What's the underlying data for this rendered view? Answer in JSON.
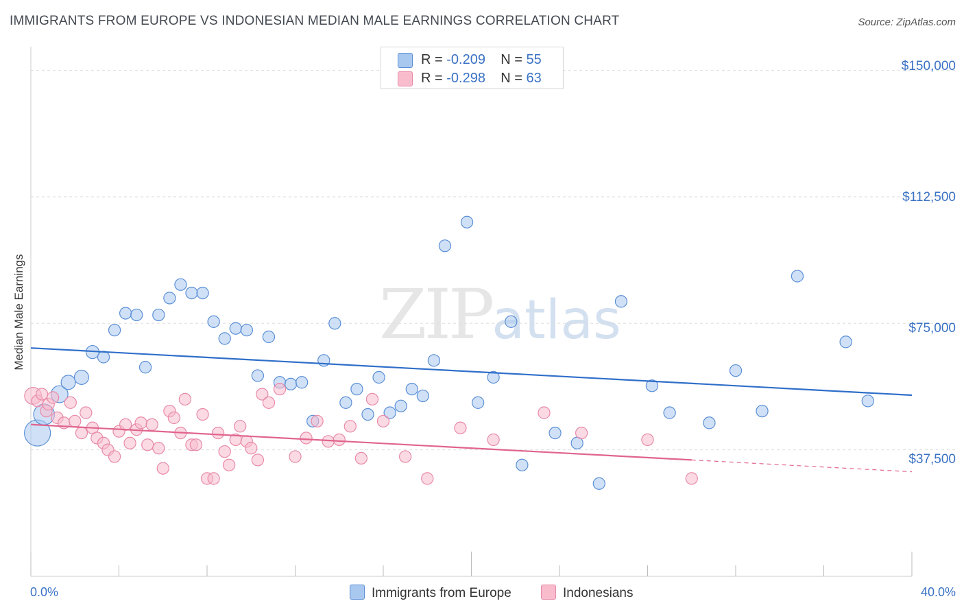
{
  "title": "IMMIGRANTS FROM EUROPE VS INDONESIAN MEDIAN MALE EARNINGS CORRELATION CHART",
  "source": "Source: ZipAtlas.com",
  "watermark": {
    "zip": "ZIP",
    "atlas": "atlas"
  },
  "legend_top": {
    "rows": [
      {
        "r_label": "R = ",
        "r_value": "-0.209",
        "n_label": "N = ",
        "n_value": "55",
        "color": "#a9c8f0"
      },
      {
        "r_label": "R = ",
        "r_value": "-0.298",
        "n_label": "N = ",
        "n_value": "63",
        "color": "#f8bccd"
      }
    ]
  },
  "colors": {
    "blue_fill": "#a9c8f0",
    "blue_stroke": "#5b8fd6",
    "blue_line": "#2f6fc9",
    "pink_fill": "#f8bccd",
    "pink_stroke": "#e88aa8",
    "pink_line": "#e0648e",
    "axis_text": "#3a72c4",
    "grid": "#dddddd"
  },
  "chart_data": {
    "type": "scatter",
    "title": "IMMIGRANTS FROM EUROPE VS INDONESIAN MEDIAN MALE EARNINGS CORRELATION CHART",
    "xlabel": "",
    "ylabel": "Median Male Earnings",
    "xlim": [
      0,
      40
    ],
    "ylim": [
      0,
      155000
    ],
    "x_tick_labels": [
      "0.0%",
      "40.0%"
    ],
    "y_ticks": [
      37500,
      75000,
      112500,
      150000
    ],
    "y_tick_labels": [
      "$37,500",
      "$75,000",
      "$112,500",
      "$150,000"
    ],
    "legend": [
      "Immigrants from Europe",
      "Indonesians"
    ],
    "series": [
      {
        "name": "Immigrants from Europe",
        "r": -0.209,
        "n": 55,
        "trend": {
          "x0": 0,
          "y0": 67700,
          "x1": 40,
          "y1": 53700
        },
        "points": [
          [
            0.3,
            42500,
            2.0
          ],
          [
            0.6,
            48000,
            1.6
          ],
          [
            1.3,
            54000,
            1.3
          ],
          [
            1.7,
            57500,
            1.1
          ],
          [
            2.3,
            59000,
            1.1
          ],
          [
            2.8,
            66500,
            1.0
          ],
          [
            3.3,
            65000,
            0.9
          ],
          [
            3.8,
            73000,
            0.9
          ],
          [
            4.3,
            78000,
            0.9
          ],
          [
            4.8,
            77500,
            0.9
          ],
          [
            5.2,
            62000,
            0.9
          ],
          [
            5.8,
            77500,
            0.9
          ],
          [
            6.3,
            82500,
            0.9
          ],
          [
            6.8,
            86500,
            0.9
          ],
          [
            7.3,
            84000,
            0.9
          ],
          [
            7.8,
            84000,
            0.9
          ],
          [
            8.3,
            75500,
            0.9
          ],
          [
            8.8,
            70500,
            0.9
          ],
          [
            9.3,
            73500,
            0.9
          ],
          [
            9.8,
            73000,
            0.9
          ],
          [
            10.3,
            59500,
            0.9
          ],
          [
            10.8,
            71000,
            0.9
          ],
          [
            11.3,
            57500,
            0.9
          ],
          [
            11.8,
            57000,
            0.9
          ],
          [
            12.3,
            57500,
            0.9
          ],
          [
            12.8,
            46000,
            0.9
          ],
          [
            13.3,
            64000,
            0.9
          ],
          [
            13.8,
            75000,
            0.9
          ],
          [
            14.3,
            51500,
            0.9
          ],
          [
            14.8,
            55500,
            0.9
          ],
          [
            15.3,
            48000,
            0.9
          ],
          [
            15.8,
            59000,
            0.9
          ],
          [
            16.3,
            48500,
            0.9
          ],
          [
            16.8,
            50500,
            0.9
          ],
          [
            17.3,
            55500,
            0.9
          ],
          [
            17.8,
            53500,
            0.9
          ],
          [
            18.3,
            64000,
            0.9
          ],
          [
            18.8,
            98000,
            0.9
          ],
          [
            19.8,
            105000,
            0.9
          ],
          [
            20.3,
            51500,
            0.9
          ],
          [
            21.0,
            59000,
            0.9
          ],
          [
            21.8,
            75500,
            0.9
          ],
          [
            22.3,
            33000,
            0.9
          ],
          [
            23.8,
            42500,
            0.9
          ],
          [
            24.8,
            39500,
            0.9
          ],
          [
            25.8,
            27500,
            0.9
          ],
          [
            26.8,
            81500,
            0.9
          ],
          [
            28.2,
            56500,
            0.9
          ],
          [
            29.0,
            48500,
            0.9
          ],
          [
            30.8,
            45500,
            0.9
          ],
          [
            32.0,
            61000,
            0.9
          ],
          [
            33.2,
            49000,
            0.9
          ],
          [
            34.8,
            89000,
            0.9
          ],
          [
            37.0,
            69500,
            0.9
          ],
          [
            38.0,
            52000,
            0.9
          ]
        ]
      },
      {
        "name": "Indonesians",
        "r": -0.298,
        "n": 63,
        "trend": {
          "x0": 0,
          "y0": 45000,
          "x1": 30,
          "y1": 34500
        },
        "trend_dashed": {
          "x0": 30,
          "y0": 34500,
          "x1": 40,
          "y1": 31000
        },
        "points": [
          [
            0.1,
            53500,
            1.3
          ],
          [
            0.3,
            52000,
            0.9
          ],
          [
            0.5,
            54000,
            0.9
          ],
          [
            0.7,
            49000,
            0.9
          ],
          [
            0.8,
            51000,
            0.9
          ],
          [
            1.0,
            53000,
            0.9
          ],
          [
            1.2,
            47000,
            0.9
          ],
          [
            1.5,
            45500,
            0.9
          ],
          [
            1.8,
            51500,
            0.9
          ],
          [
            2.0,
            46000,
            0.9
          ],
          [
            2.3,
            42500,
            0.9
          ],
          [
            2.5,
            48500,
            0.9
          ],
          [
            2.8,
            44000,
            0.9
          ],
          [
            3.0,
            41000,
            0.9
          ],
          [
            3.3,
            39500,
            0.9
          ],
          [
            3.5,
            37500,
            0.9
          ],
          [
            3.8,
            35500,
            0.9
          ],
          [
            4.0,
            43000,
            0.9
          ],
          [
            4.3,
            45000,
            0.9
          ],
          [
            4.5,
            39500,
            0.9
          ],
          [
            4.8,
            43500,
            0.9
          ],
          [
            5.0,
            45500,
            0.9
          ],
          [
            5.3,
            39000,
            0.9
          ],
          [
            5.5,
            45000,
            0.9
          ],
          [
            5.8,
            38000,
            0.9
          ],
          [
            6.0,
            32000,
            0.9
          ],
          [
            6.3,
            49000,
            0.9
          ],
          [
            6.5,
            47000,
            0.9
          ],
          [
            6.8,
            42500,
            0.9
          ],
          [
            7.0,
            52500,
            0.9
          ],
          [
            7.3,
            39000,
            0.9
          ],
          [
            7.5,
            39000,
            0.9
          ],
          [
            7.8,
            48000,
            0.9
          ],
          [
            8.0,
            29000,
            0.9
          ],
          [
            8.3,
            29000,
            0.9
          ],
          [
            8.5,
            42500,
            0.9
          ],
          [
            8.8,
            37000,
            0.9
          ],
          [
            9.0,
            33000,
            0.9
          ],
          [
            9.3,
            40500,
            0.9
          ],
          [
            9.5,
            44500,
            0.9
          ],
          [
            9.8,
            40000,
            0.9
          ],
          [
            10.0,
            38000,
            0.9
          ],
          [
            10.3,
            34500,
            0.9
          ],
          [
            10.5,
            54000,
            0.9
          ],
          [
            10.8,
            51500,
            0.9
          ],
          [
            11.3,
            55500,
            0.9
          ],
          [
            12.0,
            35500,
            0.9
          ],
          [
            12.5,
            41000,
            0.9
          ],
          [
            13.0,
            46000,
            0.9
          ],
          [
            13.5,
            40000,
            0.9
          ],
          [
            14.0,
            40500,
            0.9
          ],
          [
            14.5,
            44500,
            0.9
          ],
          [
            15.0,
            35000,
            0.9
          ],
          [
            15.5,
            52500,
            0.9
          ],
          [
            16.0,
            46000,
            0.9
          ],
          [
            17.0,
            35500,
            0.9
          ],
          [
            18.0,
            29000,
            0.9
          ],
          [
            19.5,
            44000,
            0.9
          ],
          [
            21.0,
            40500,
            0.9
          ],
          [
            23.3,
            48500,
            0.9
          ],
          [
            25.0,
            42500,
            0.9
          ],
          [
            28.0,
            40500,
            0.9
          ],
          [
            30.0,
            29000,
            0.9
          ]
        ]
      }
    ]
  }
}
